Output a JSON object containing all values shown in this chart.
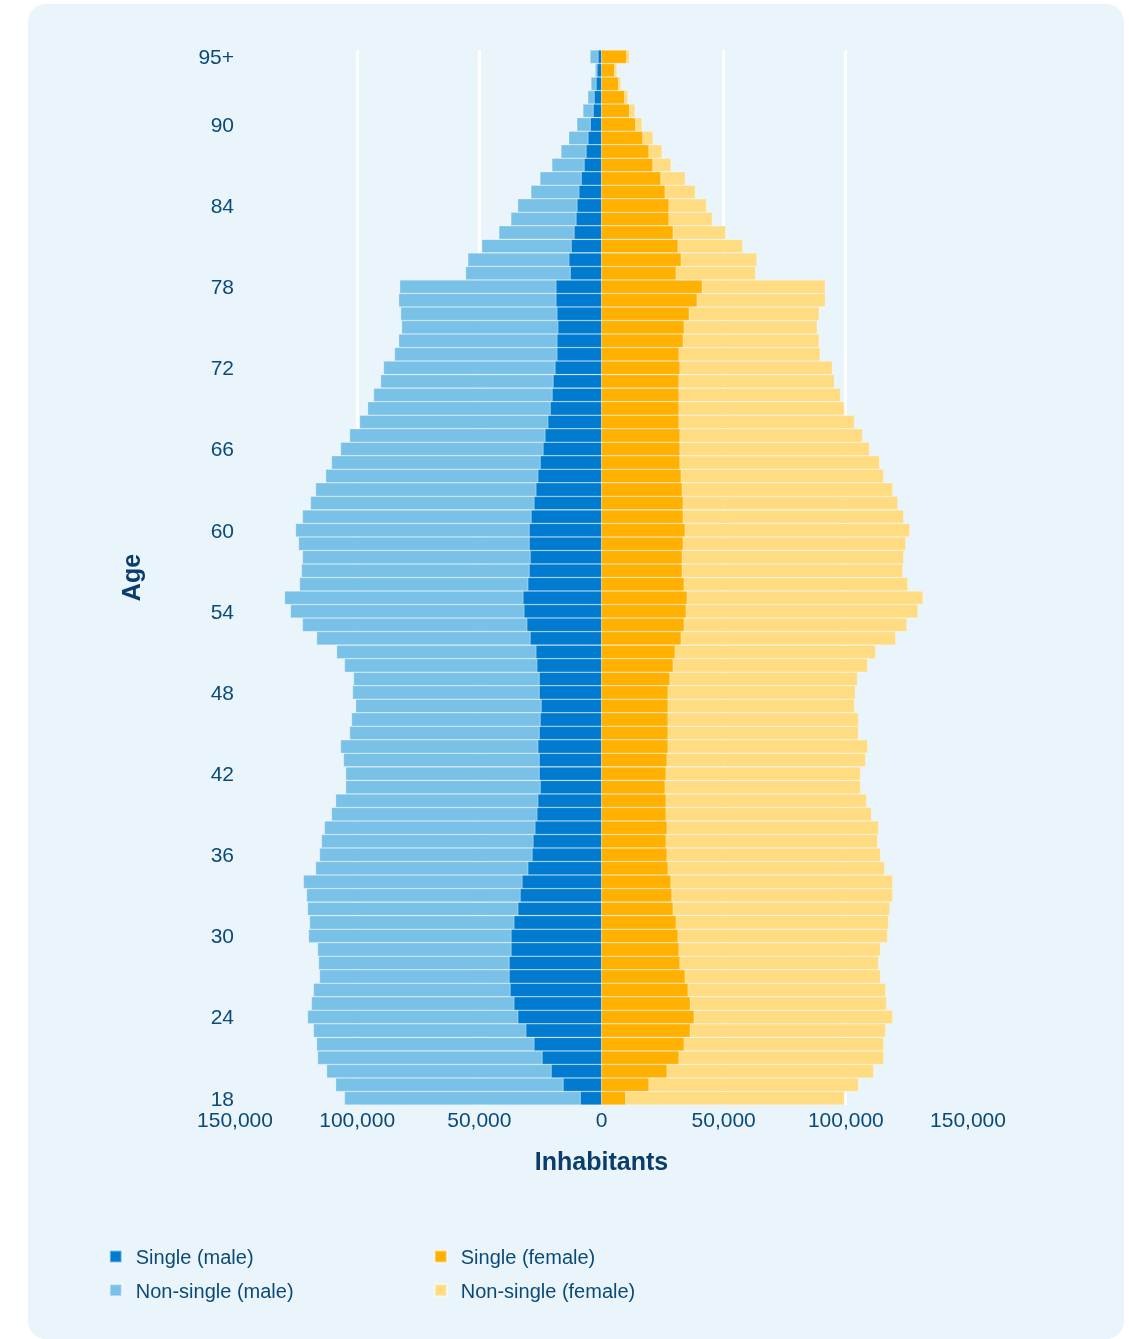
{
  "chart_data": {
    "type": "bar",
    "orientation": "horizontal",
    "stacked": true,
    "xlabel": "Inhabitants",
    "ylabel": "Age",
    "categories": [
      "95+",
      null,
      null,
      null,
      null,
      "90",
      null,
      null,
      null,
      null,
      null,
      "84",
      null,
      null,
      null,
      null,
      null,
      "78",
      null,
      null,
      null,
      null,
      null,
      "72",
      null,
      null,
      null,
      null,
      null,
      "66",
      null,
      null,
      null,
      null,
      null,
      "60",
      null,
      null,
      null,
      null,
      null,
      "54",
      null,
      null,
      null,
      null,
      null,
      "48",
      null,
      null,
      null,
      null,
      null,
      "42",
      null,
      null,
      null,
      null,
      null,
      "36",
      null,
      null,
      null,
      null,
      null,
      "30",
      null,
      null,
      null,
      null,
      null,
      "24",
      null,
      null,
      null,
      null,
      null,
      "18"
    ],
    "series": [
      {
        "name": "Single (male)",
        "color": "#007bcf",
        "values": [
          -1400,
          -1800,
          -2200,
          -3000,
          -3400,
          -4600,
          -5500,
          -6300,
          -7100,
          -8300,
          -9200,
          -10000,
          -10400,
          -11200,
          -12400,
          -13300,
          -12800,
          -18600,
          -18600,
          -18200,
          -17800,
          -18200,
          -18200,
          -19000,
          -19800,
          -20200,
          -21000,
          -21900,
          -23100,
          -23900,
          -25100,
          -26000,
          -26800,
          -27600,
          -28800,
          -29600,
          -29600,
          -29200,
          -29600,
          -30100,
          -32100,
          -31700,
          -30500,
          -29200,
          -26800,
          -26400,
          -25500,
          -25500,
          -24700,
          -25100,
          -25500,
          -26000,
          -25500,
          -25500,
          -25100,
          -26000,
          -26400,
          -27200,
          -28000,
          -28400,
          -30100,
          -32500,
          -33300,
          -34200,
          -35800,
          -37000,
          -37000,
          -37800,
          -37800,
          -37400,
          -35800,
          -34200,
          -30900,
          -27600,
          -24300,
          -20600,
          -15700,
          -8700
        ]
      },
      {
        "name": "Single (female)",
        "color": "#ffb000",
        "values": [
          10300,
          5400,
          7000,
          9500,
          11500,
          14000,
          16900,
          19400,
          21000,
          24300,
          26000,
          27600,
          27600,
          29300,
          31300,
          32600,
          30500,
          41200,
          39100,
          35900,
          33800,
          33400,
          31700,
          32100,
          31700,
          31700,
          31700,
          31700,
          32100,
          32100,
          32100,
          32600,
          33000,
          33400,
          33400,
          34200,
          33400,
          33000,
          33000,
          33800,
          35000,
          34600,
          33800,
          32600,
          30100,
          29300,
          28000,
          27200,
          27200,
          27200,
          27200,
          27200,
          26800,
          26400,
          26000,
          26400,
          26400,
          26800,
          26400,
          26800,
          27200,
          28400,
          28800,
          29300,
          30500,
          31300,
          31700,
          32100,
          34200,
          35400,
          36300,
          37900,
          36300,
          33800,
          31700,
          26800,
          19400,
          9900
        ]
      },
      {
        "name": "Non-single (male)",
        "color": "#7ac1e8",
        "values": [
          -3200,
          -700,
          -2000,
          -2500,
          -4100,
          -5400,
          -7800,
          -10200,
          -13100,
          -16800,
          -19600,
          -24200,
          -26600,
          -30700,
          -36500,
          -41300,
          -42700,
          -63900,
          -64300,
          -63900,
          -63900,
          -64700,
          -66400,
          -70100,
          -70500,
          -73000,
          -74600,
          -77000,
          -79900,
          -82800,
          -85300,
          -86800,
          -90100,
          -91400,
          -93500,
          -95500,
          -94300,
          -93100,
          -93100,
          -93400,
          -97500,
          -95500,
          -91800,
          -87300,
          -81500,
          -78700,
          -75900,
          -76300,
          -75800,
          -77100,
          -77500,
          -80700,
          -80000,
          -79100,
          -79500,
          -82700,
          -84000,
          -86100,
          -86500,
          -86900,
          -86800,
          -89400,
          -87300,
          -86000,
          -83600,
          -82800,
          -79100,
          -77900,
          -77500,
          -80400,
          -82800,
          -86000,
          -86900,
          -88900,
          -91800,
          -91800,
          -93000,
          -96400
        ]
      },
      {
        "name": "Non-single (female)",
        "color": "#ffdc82",
        "values": [
          1100,
          800,
          800,
          1200,
          2100,
          2500,
          4100,
          5300,
          7400,
          9900,
          12300,
          15300,
          17700,
          21400,
          26400,
          30900,
          32500,
          50300,
          52400,
          53100,
          54400,
          55600,
          57700,
          62300,
          63500,
          66000,
          67600,
          71700,
          74600,
          77500,
          81600,
          82800,
          86100,
          87800,
          90200,
          91900,
          91100,
          90600,
          90200,
          91500,
          96500,
          94800,
          91100,
          87700,
          82000,
          79500,
          76700,
          76600,
          76200,
          77900,
          77900,
          81600,
          81200,
          79500,
          79900,
          82000,
          84000,
          86500,
          86500,
          87300,
          88600,
          90700,
          90300,
          88600,
          86900,
          85700,
          82400,
          81200,
          79900,
          80800,
          80300,
          81200,
          79900,
          81600,
          83700,
          84500,
          85700,
          89400
        ]
      }
    ],
    "xlim": [
      -150000,
      150000
    ],
    "xticks": [
      {
        "value": -150000,
        "label": "150,000"
      },
      {
        "value": -100000,
        "label": "100,000"
      },
      {
        "value": -50000,
        "label": "50,000"
      },
      0,
      {
        "value": 50000,
        "label": "50,000"
      },
      {
        "value": 100000,
        "label": "100,000"
      },
      {
        "value": 150000,
        "label": "150,000"
      }
    ],
    "grid": "x",
    "legend": "bottom left"
  }
}
